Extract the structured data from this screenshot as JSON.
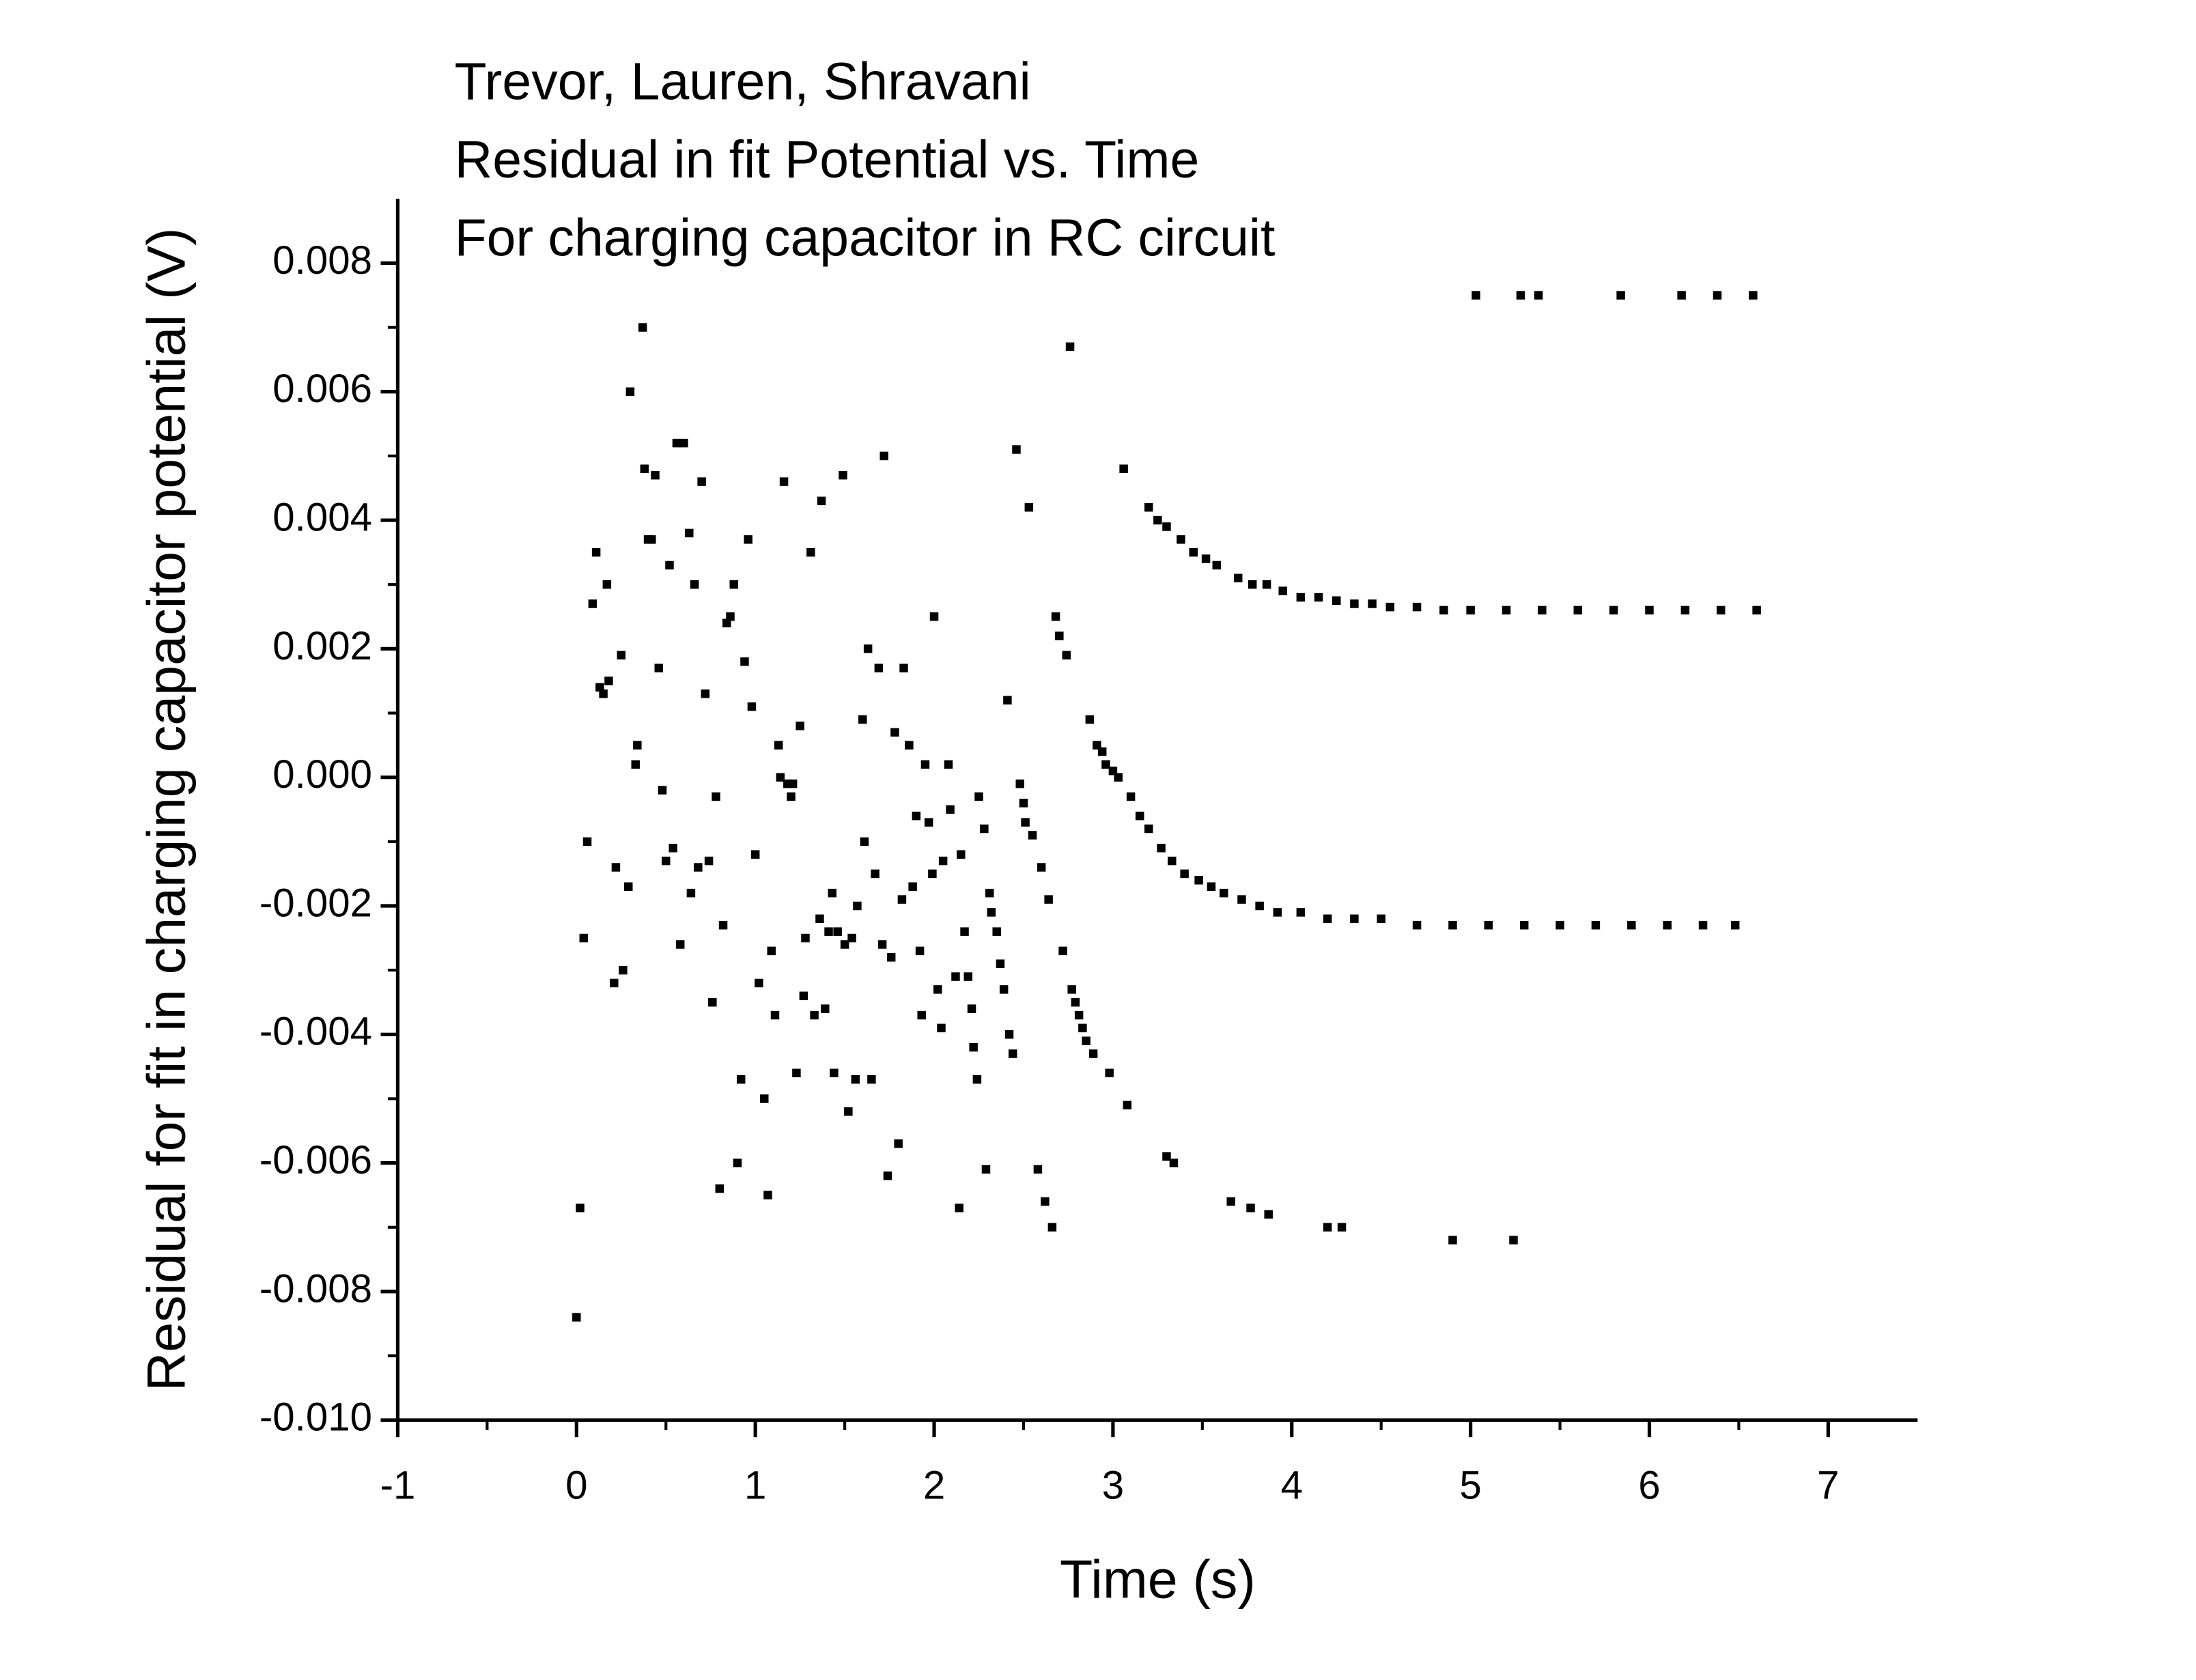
{
  "chart_data": {
    "type": "scatter",
    "title": [
      "Trevor, Lauren, Shravani",
      "Residual in fit Potential vs. Time",
      "For charging capacitor in RC circuit"
    ],
    "x_label": "Time (s)",
    "y_label": "Residual for fit in charging capacitor potential (V)",
    "xlim": [
      -1,
      7.5
    ],
    "ylim": [
      -0.01,
      0.009
    ],
    "xticks": [
      -1,
      0,
      1,
      2,
      3,
      4,
      5,
      6,
      7
    ],
    "yticks": [
      {
        "value": -0.01,
        "label": "-0.010"
      },
      -0.008,
      -0.006,
      -0.004,
      -0.002,
      {
        "value": 0,
        "label": "0.000"
      },
      0.002,
      0.004,
      0.006,
      0.008
    ],
    "color": "#000000",
    "x": [
      0,
      0.02,
      0.04,
      0.06,
      0.09,
      0.11,
      0.13,
      0.15,
      0.17,
      0.18,
      0.21,
      0.22,
      0.25,
      0.26,
      0.29,
      0.3,
      0.33,
      0.34,
      0.37,
      0.38,
      0.4,
      0.42,
      0.44,
      0.46,
      0.48,
      0.5,
      0.52,
      0.54,
      0.56,
      0.58,
      0.6,
      0.63,
      0.64,
      0.66,
      0.68,
      0.7,
      0.72,
      0.74,
      0.76,
      0.78,
      0.8,
      0.82,
      0.84,
      0.86,
      0.88,
      0.9,
      0.92,
      0.94,
      0.96,
      0.98,
      1.0,
      1.02,
      1.05,
      1.07,
      1.09,
      1.11,
      1.13,
      1.14,
      1.16,
      1.18,
      1.2,
      1.21,
      1.23,
      1.25,
      1.27,
      1.28,
      1.31,
      1.33,
      1.36,
      1.37,
      1.39,
      1.41,
      1.43,
      1.44,
      1.46,
      1.49,
      1.5,
      1.52,
      1.54,
      1.56,
      1.57,
      1.6,
      1.61,
      1.63,
      1.65,
      1.67,
      1.69,
      1.71,
      1.72,
      1.74,
      1.76,
      1.78,
      1.8,
      1.82,
      1.83,
      1.86,
      1.88,
      1.9,
      1.92,
      1.93,
      1.95,
      1.97,
      1.99,
      2.0,
      2.02,
      2.04,
      2.05,
      2.08,
      2.09,
      2.12,
      2.14,
      2.15,
      2.17,
      2.19,
      2.21,
      2.22,
      2.24,
      2.25,
      2.28,
      2.29,
      2.31,
      2.32,
      2.35,
      2.37,
      2.39,
      2.41,
      2.42,
      2.44,
      2.46,
      2.48,
      2.5,
      2.51,
      2.53,
      2.55,
      2.58,
      2.6,
      2.62,
      2.64,
      2.66,
      2.68,
      2.7,
      2.72,
      2.74,
      2.76,
      2.77,
      2.79,
      2.81,
      2.83,
      2.85,
      2.87,
      2.89,
      2.91,
      2.94,
      2.96,
      2.98,
      3.0,
      3.03,
      3.06,
      3.08,
      3.2,
      3.25,
      3.3,
      3.38,
      3.45,
      3.52,
      3.58,
      3.7,
      3.78,
      3.86,
      3.95,
      4.05,
      4.15,
      4.25,
      4.35,
      4.45,
      4.55,
      4.7,
      4.85,
      5.0,
      5.2,
      5.4,
      5.6,
      5.8,
      6.0,
      6.2,
      6.4,
      6.6,
      3.1,
      3.15,
      3.2,
      3.27,
      3.33,
      3.4,
      3.48,
      3.55,
      3.62,
      3.72,
      3.82,
      3.92,
      4.05,
      4.2,
      4.35,
      4.5,
      4.7,
      4.9,
      5.1,
      5.3,
      5.5,
      5.7,
      5.9,
      6.1,
      6.3,
      6.48,
      3.3,
      3.34,
      3.66,
      3.77,
      3.87,
      4.2,
      4.28,
      4.9,
      5.24,
      5.03,
      5.28,
      5.38,
      5.84,
      6.18,
      6.38,
      6.58
    ],
    "values": [
      -0.0084,
      -0.0067,
      -0.0025,
      -0.001,
      0.0027,
      0.0035,
      0.0014,
      0.0013,
      0.003,
      0.0015,
      -0.0032,
      -0.0014,
      0.0019,
      -0.003,
      -0.0017,
      0.006,
      0.0002,
      0.0005,
      0.007,
      0.0048,
      0.0037,
      0.0037,
      0.0047,
      0.0017,
      -0.0002,
      -0.0013,
      0.0033,
      -0.0011,
      0.0052,
      -0.0026,
      0.0052,
      0.0038,
      -0.0018,
      0.003,
      -0.0014,
      0.0046,
      0.0013,
      -0.0013,
      -0.0035,
      -0.0003,
      -0.0064,
      -0.0023,
      0.0024,
      0.0025,
      0.003,
      -0.006,
      -0.0047,
      0.0018,
      0.0037,
      0.0011,
      -0.0012,
      -0.0032,
      -0.005,
      -0.0065,
      -0.0027,
      -0.0037,
      0.0005,
      0.0,
      0.0046,
      -0.0001,
      -0.0003,
      -0.0001,
      -0.0046,
      0.0008,
      -0.0034,
      -0.0025,
      0.0035,
      -0.0037,
      -0.0022,
      0.0043,
      -0.0036,
      -0.0024,
      -0.0018,
      -0.0046,
      -0.0024,
      0.0047,
      -0.0026,
      -0.0052,
      -0.0025,
      -0.0047,
      -0.002,
      0.0009,
      -0.001,
      0.002,
      -0.0047,
      -0.0015,
      0.0017,
      -0.0026,
      0.005,
      -0.0062,
      -0.0028,
      0.0007,
      -0.0057,
      -0.0019,
      0.0017,
      0.0005,
      -0.0017,
      -0.0006,
      -0.0027,
      -0.0037,
      0.0002,
      -0.0007,
      -0.0015,
      0.0025,
      -0.0033,
      -0.0039,
      -0.0013,
      0.0002,
      -0.0005,
      -0.0031,
      -0.0067,
      -0.0012,
      -0.0024,
      -0.0031,
      -0.0036,
      -0.0042,
      -0.0047,
      -0.0003,
      -0.0008,
      -0.0061,
      -0.0018,
      -0.0021,
      -0.0024,
      -0.0029,
      -0.0033,
      0.0012,
      -0.004,
      -0.0043,
      0.0051,
      -0.0001,
      -0.0004,
      -0.0007,
      0.0042,
      -0.0009,
      -0.0061,
      -0.0014,
      -0.0066,
      -0.0019,
      -0.007,
      0.0025,
      0.0022,
      -0.0027,
      0.0019,
      0.0067,
      -0.0033,
      -0.0035,
      -0.0037,
      -0.0039,
      -0.0041,
      0.0009,
      -0.0043,
      0.0005,
      0.0004,
      0.0002,
      -0.0046,
      0.0001,
      0.0,
      0.0048,
      -0.0051,
      0.0042,
      0.004,
      0.0039,
      0.0037,
      0.0035,
      0.0034,
      0.0033,
      0.0031,
      0.003,
      0.003,
      0.0029,
      0.0028,
      0.0028,
      0.00275,
      0.0027,
      0.0027,
      0.00265,
      0.00265,
      0.0026,
      0.0026,
      0.0026,
      0.0026,
      0.0026,
      0.0026,
      0.0026,
      0.0026,
      0.0026,
      0.0026,
      -0.0003,
      -0.0006,
      -0.0008,
      -0.0011,
      -0.0013,
      -0.0015,
      -0.0016,
      -0.0017,
      -0.0018,
      -0.0019,
      -0.002,
      -0.0021,
      -0.0021,
      -0.0022,
      -0.0022,
      -0.0022,
      -0.0023,
      -0.0023,
      -0.0023,
      -0.0023,
      -0.0023,
      -0.0023,
      -0.0023,
      -0.0023,
      -0.0023,
      -0.0023,
      -0.0059,
      -0.006,
      -0.0066,
      -0.0067,
      -0.0068,
      -0.007,
      -0.007,
      -0.0072,
      -0.0072,
      0.0075,
      0.0075,
      0.0075,
      0.0075,
      0.0075,
      0.0075,
      0.0075
    ]
  }
}
